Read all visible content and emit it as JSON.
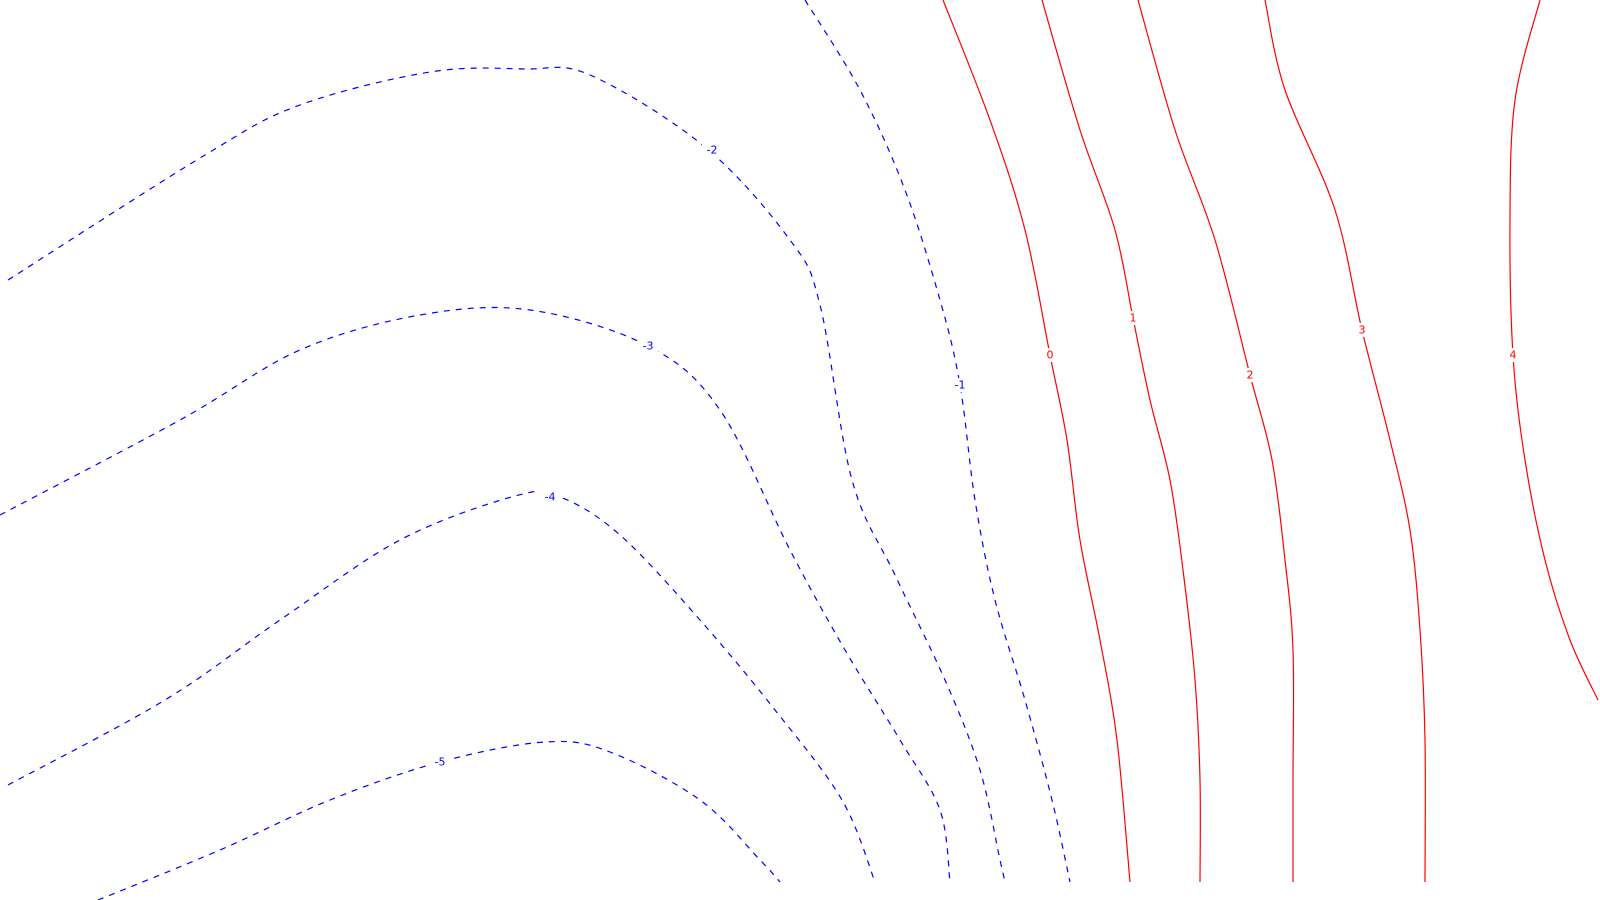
{
  "chart_data": {
    "type": "contour",
    "title": "",
    "xlabel": "",
    "ylabel": "",
    "x_range": [
      0,
      1600
    ],
    "y_range": [
      0,
      900
    ],
    "grid": false,
    "legend": "none",
    "style": {
      "negative_color": "#0000ff",
      "positive_color": "#ff0000",
      "negative_linestyle": "dashed",
      "positive_linestyle": "solid"
    },
    "contours": [
      {
        "level": -2,
        "label": "-2",
        "color": "#0000ff",
        "path": [
          [
            8,
            280
          ],
          [
            205,
            155
          ],
          [
            300,
            105
          ],
          [
            430,
            72
          ],
          [
            525,
            69
          ],
          [
            590,
            75
          ],
          [
            705,
            147
          ],
          [
            790,
            240
          ],
          [
            820,
            305
          ],
          [
            852,
            480
          ],
          [
            895,
            575
          ],
          [
            945,
            680
          ],
          [
            980,
            770
          ],
          [
            1000,
            860
          ],
          [
            1005,
            882
          ]
        ],
        "label_at": [
          712,
          150
        ]
      },
      {
        "level": -3,
        "label": "-3",
        "color": "#0000ff",
        "path": [
          [
            0,
            515
          ],
          [
            180,
            420
          ],
          [
            300,
            350
          ],
          [
            420,
            315
          ],
          [
            530,
            310
          ],
          [
            648,
            346
          ],
          [
            720,
            410
          ],
          [
            790,
            550
          ],
          [
            845,
            650
          ],
          [
            900,
            740
          ],
          [
            940,
            810
          ],
          [
            950,
            882
          ]
        ],
        "label_at": [
          648,
          346
        ]
      },
      {
        "level": -4,
        "label": "-4",
        "color": "#0000ff",
        "path": [
          [
            8,
            785
          ],
          [
            165,
            700
          ],
          [
            280,
            620
          ],
          [
            400,
            540
          ],
          [
            515,
            496
          ],
          [
            560,
            497
          ],
          [
            620,
            535
          ],
          [
            700,
            620
          ],
          [
            775,
            710
          ],
          [
            842,
            800
          ],
          [
            875,
            882
          ]
        ],
        "label_at": [
          550,
          497
        ]
      },
      {
        "level": -5,
        "label": "-5",
        "color": "#0000ff",
        "path": [
          [
            98,
            900
          ],
          [
            220,
            850
          ],
          [
            330,
            800
          ],
          [
            440,
            762
          ],
          [
            545,
            742
          ],
          [
            610,
            752
          ],
          [
            700,
            800
          ],
          [
            760,
            860
          ],
          [
            780,
            882
          ]
        ],
        "label_at": [
          440,
          762
        ]
      },
      {
        "level": -1,
        "label": "-1",
        "color": "#0000ff",
        "path": [
          [
            805,
            0
          ],
          [
            860,
            90
          ],
          [
            905,
            190
          ],
          [
            940,
            300
          ],
          [
            960,
            385
          ],
          [
            975,
            500
          ],
          [
            995,
            600
          ],
          [
            1025,
            700
          ],
          [
            1052,
            800
          ],
          [
            1070,
            882
          ]
        ],
        "label_at": [
          960,
          385
        ]
      },
      {
        "level": 0,
        "label": "0",
        "color": "#ff0000",
        "path": [
          [
            943,
            0
          ],
          [
            990,
            120
          ],
          [
            1025,
            230
          ],
          [
            1050,
            355
          ],
          [
            1067,
            440
          ],
          [
            1080,
            540
          ],
          [
            1100,
            640
          ],
          [
            1117,
            740
          ],
          [
            1130,
            882
          ]
        ],
        "label_at": [
          1050,
          355
        ]
      },
      {
        "level": 1,
        "label": "1",
        "color": "#ff0000",
        "path": [
          [
            1042,
            0
          ],
          [
            1080,
            130
          ],
          [
            1115,
            230
          ],
          [
            1133,
            318
          ],
          [
            1150,
            400
          ],
          [
            1170,
            480
          ],
          [
            1183,
            570
          ],
          [
            1195,
            680
          ],
          [
            1200,
            780
          ],
          [
            1200,
            882
          ]
        ],
        "label_at": [
          1133,
          318
        ]
      },
      {
        "level": 2,
        "label": "2",
        "color": "#ff0000",
        "path": [
          [
            1138,
            0
          ],
          [
            1175,
            130
          ],
          [
            1215,
            240
          ],
          [
            1250,
            375
          ],
          [
            1272,
            460
          ],
          [
            1285,
            560
          ],
          [
            1293,
            650
          ],
          [
            1293,
            780
          ],
          [
            1293,
            882
          ]
        ],
        "label_at": [
          1250,
          375
        ]
      },
      {
        "level": 3,
        "label": "3",
        "color": "#ff0000",
        "path": [
          [
            1265,
            0
          ],
          [
            1285,
            90
          ],
          [
            1335,
            210
          ],
          [
            1362,
            330
          ],
          [
            1390,
            440
          ],
          [
            1410,
            530
          ],
          [
            1420,
            630
          ],
          [
            1425,
            740
          ],
          [
            1425,
            882
          ]
        ],
        "label_at": [
          1362,
          330
        ]
      },
      {
        "level": 4,
        "label": "4",
        "color": "#ff0000",
        "path": [
          [
            1540,
            0
          ],
          [
            1515,
            100
          ],
          [
            1510,
            220
          ],
          [
            1513,
            355
          ],
          [
            1525,
            460
          ],
          [
            1545,
            560
          ],
          [
            1570,
            640
          ],
          [
            1598,
            700
          ]
        ],
        "label_at": [
          1513,
          355
        ]
      }
    ]
  }
}
